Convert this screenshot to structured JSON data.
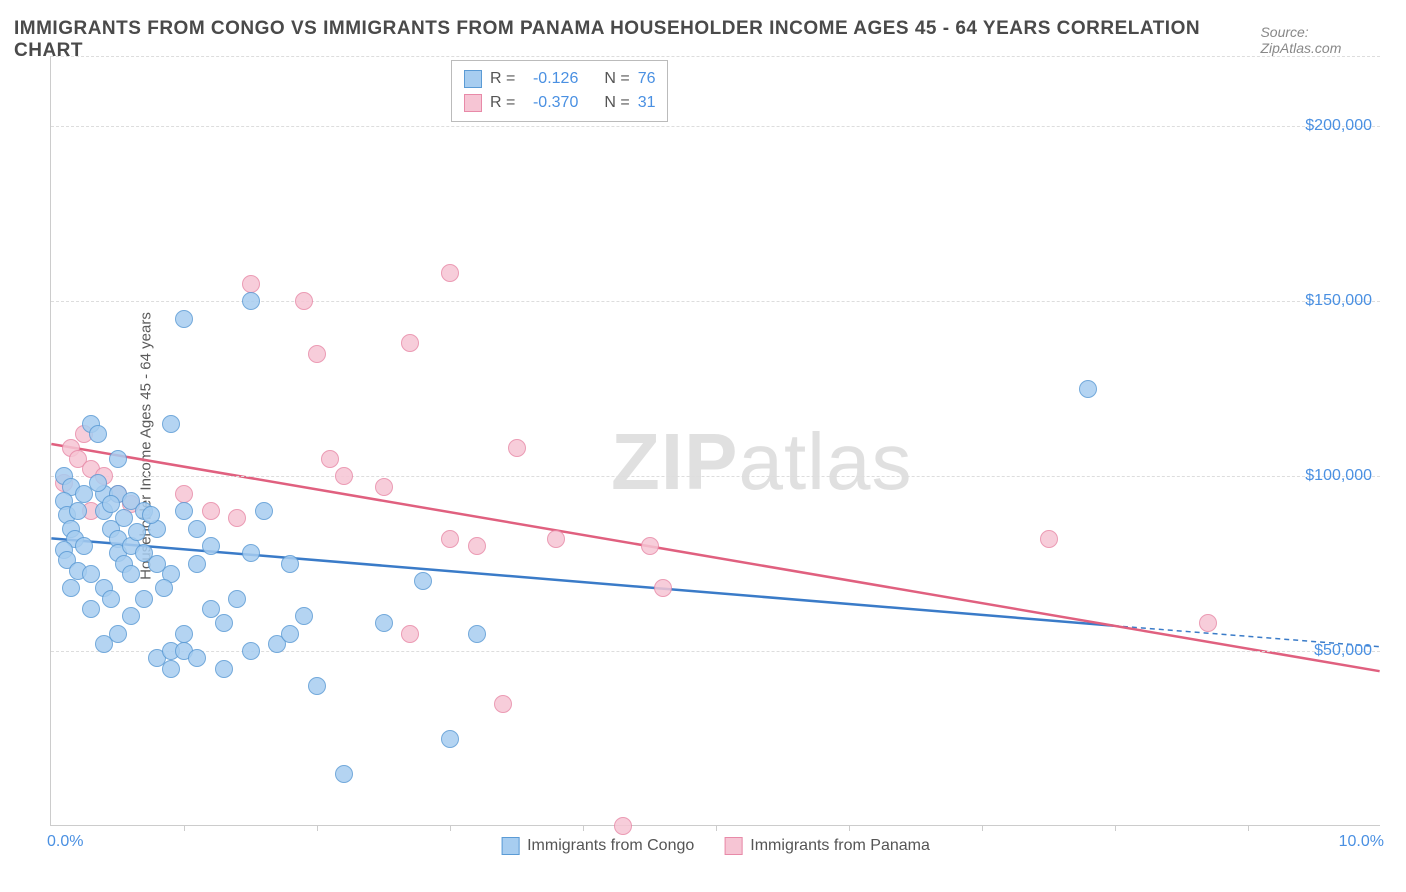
{
  "title": "IMMIGRANTS FROM CONGO VS IMMIGRANTS FROM PANAMA HOUSEHOLDER INCOME AGES 45 - 64 YEARS CORRELATION CHART",
  "source_label": "Source: ZipAtlas.com",
  "watermark_bold": "ZIP",
  "watermark_light": "atlas",
  "y_axis_label": "Householder Income Ages 45 - 64 years",
  "chart": {
    "type": "scatter",
    "xlim": [
      0,
      10
    ],
    "ylim": [
      0,
      220000
    ],
    "x_tick_left": "0.0%",
    "x_tick_right": "10.0%",
    "y_ticks": [
      {
        "value": 50000,
        "label": "$50,000"
      },
      {
        "value": 100000,
        "label": "$100,000"
      },
      {
        "value": 150000,
        "label": "$150,000"
      },
      {
        "value": 200000,
        "label": "$200,000"
      }
    ],
    "x_tick_marks_at": [
      1,
      2,
      3,
      4,
      5,
      6,
      7,
      8,
      9
    ],
    "grid_color": "#dddddd",
    "background_color": "#ffffff",
    "series": [
      {
        "name": "Immigrants from Congo",
        "fill_color": "#a7cdf0",
        "stroke_color": "#5b9bd5",
        "line_color": "#3a7bc8",
        "r_value": "-0.126",
        "n_value": "76",
        "marker_radius": 9,
        "trend": {
          "x1": 0,
          "y1": 82000,
          "x2": 8.0,
          "y2": 57000,
          "dash_x2": 10.0,
          "dash_y2": 51000
        },
        "points": [
          [
            0.1,
            100000
          ],
          [
            0.15,
            97000
          ],
          [
            0.1,
            93000
          ],
          [
            0.12,
            89000
          ],
          [
            0.15,
            85000
          ],
          [
            0.18,
            82000
          ],
          [
            0.1,
            79000
          ],
          [
            0.12,
            76000
          ],
          [
            0.2,
            73000
          ],
          [
            0.3,
            115000
          ],
          [
            0.35,
            112000
          ],
          [
            0.4,
            95000
          ],
          [
            0.4,
            90000
          ],
          [
            0.45,
            85000
          ],
          [
            0.5,
            82000
          ],
          [
            0.5,
            78000
          ],
          [
            0.55,
            75000
          ],
          [
            0.6,
            72000
          ],
          [
            0.4,
            68000
          ],
          [
            0.45,
            65000
          ],
          [
            0.3,
            62000
          ],
          [
            0.5,
            95000
          ],
          [
            0.6,
            93000
          ],
          [
            0.7,
            90000
          ],
          [
            0.8,
            85000
          ],
          [
            0.6,
            80000
          ],
          [
            0.7,
            78000
          ],
          [
            0.8,
            75000
          ],
          [
            0.9,
            72000
          ],
          [
            0.85,
            68000
          ],
          [
            0.7,
            65000
          ],
          [
            0.6,
            60000
          ],
          [
            0.5,
            55000
          ],
          [
            0.4,
            52000
          ],
          [
            0.8,
            48000
          ],
          [
            0.9,
            50000
          ],
          [
            1.0,
            55000
          ],
          [
            1.1,
            85000
          ],
          [
            1.2,
            80000
          ],
          [
            1.3,
            45000
          ],
          [
            1.0,
            90000
          ],
          [
            1.1,
            75000
          ],
          [
            0.9,
            115000
          ],
          [
            1.5,
            78000
          ],
          [
            1.4,
            65000
          ],
          [
            1.5,
            50000
          ],
          [
            1.7,
            52000
          ],
          [
            1.8,
            55000
          ],
          [
            1.8,
            75000
          ],
          [
            1.6,
            90000
          ],
          [
            1.0,
            145000
          ],
          [
            1.5,
            150000
          ],
          [
            2.0,
            40000
          ],
          [
            1.3,
            58000
          ],
          [
            1.2,
            62000
          ],
          [
            2.2,
            15000
          ],
          [
            2.8,
            70000
          ],
          [
            3.0,
            25000
          ],
          [
            2.5,
            58000
          ],
          [
            3.2,
            55000
          ],
          [
            0.35,
            98000
          ],
          [
            0.45,
            92000
          ],
          [
            0.55,
            88000
          ],
          [
            0.65,
            84000
          ],
          [
            0.75,
            89000
          ],
          [
            0.3,
            72000
          ],
          [
            0.25,
            80000
          ],
          [
            0.15,
            68000
          ],
          [
            0.2,
            90000
          ],
          [
            0.25,
            95000
          ],
          [
            1.0,
            50000
          ],
          [
            0.9,
            45000
          ],
          [
            1.1,
            48000
          ],
          [
            1.9,
            60000
          ],
          [
            7.8,
            125000
          ],
          [
            0.5,
            105000
          ]
        ]
      },
      {
        "name": "Immigrants from Panama",
        "fill_color": "#f6c5d4",
        "stroke_color": "#e88aa8",
        "line_color": "#e0607f",
        "r_value": "-0.370",
        "n_value": "31",
        "marker_radius": 9,
        "trend": {
          "x1": 0,
          "y1": 109000,
          "x2": 10.0,
          "y2": 44000
        },
        "points": [
          [
            0.15,
            108000
          ],
          [
            0.2,
            105000
          ],
          [
            0.3,
            102000
          ],
          [
            0.1,
            98000
          ],
          [
            0.25,
            112000
          ],
          [
            0.4,
            100000
          ],
          [
            0.5,
            95000
          ],
          [
            0.6,
            92000
          ],
          [
            0.3,
            90000
          ],
          [
            1.0,
            95000
          ],
          [
            1.2,
            90000
          ],
          [
            1.4,
            88000
          ],
          [
            1.5,
            155000
          ],
          [
            1.9,
            150000
          ],
          [
            2.0,
            135000
          ],
          [
            2.1,
            105000
          ],
          [
            2.2,
            100000
          ],
          [
            2.5,
            97000
          ],
          [
            2.7,
            138000
          ],
          [
            3.0,
            158000
          ],
          [
            2.7,
            55000
          ],
          [
            3.0,
            82000
          ],
          [
            3.2,
            80000
          ],
          [
            3.5,
            108000
          ],
          [
            3.8,
            82000
          ],
          [
            3.4,
            35000
          ],
          [
            4.5,
            80000
          ],
          [
            4.6,
            68000
          ],
          [
            4.3,
            0
          ],
          [
            7.5,
            82000
          ],
          [
            8.7,
            58000
          ]
        ]
      }
    ]
  },
  "stats_legend_label_r": "R  =",
  "stats_legend_label_n": "N  ="
}
